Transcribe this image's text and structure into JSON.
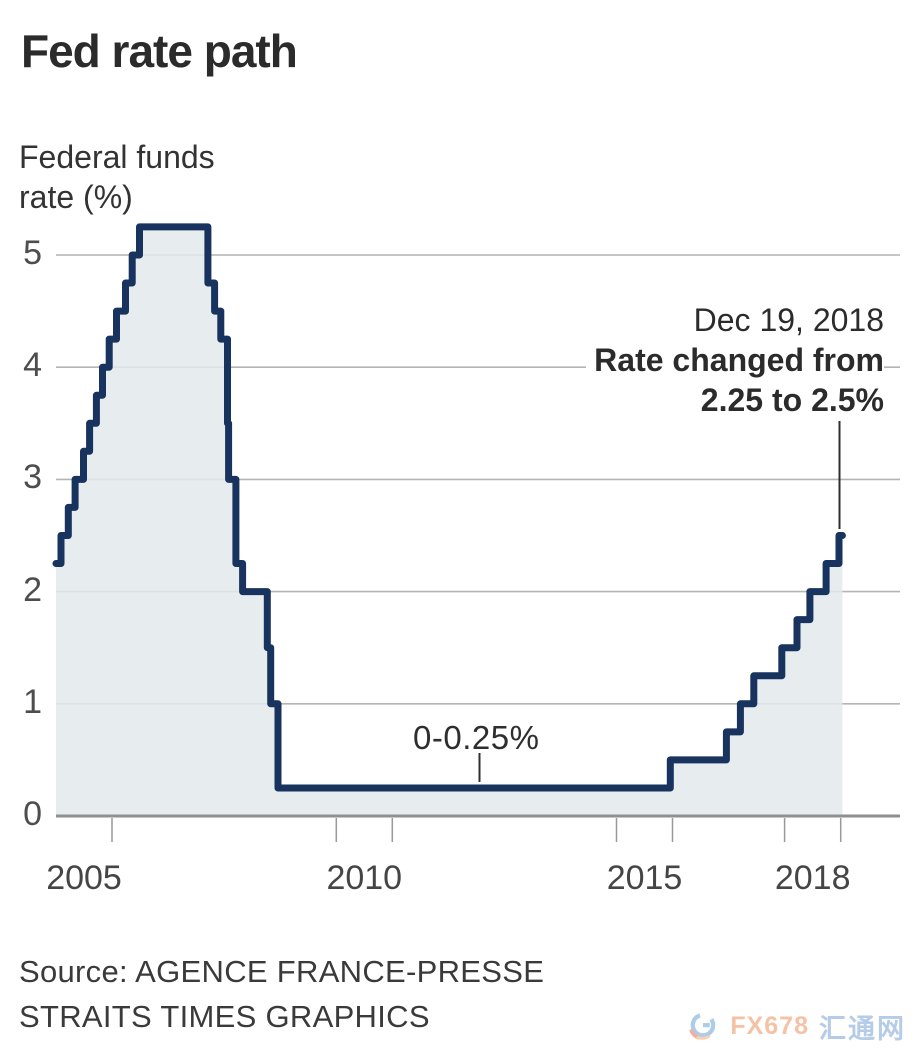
{
  "title": "Fed rate path",
  "subtitle_lines": [
    "Federal funds",
    "rate (%)"
  ],
  "annotations": {
    "rate_change": {
      "date_line": "Dec 19, 2018",
      "text_line1": "Rate changed from",
      "text_line2": "2.25 to 2.5%"
    },
    "zero_band": {
      "label": "0-0.25%"
    }
  },
  "source_lines": [
    "Source: AGENCE FRANCE-PRESSE",
    "STRAITS TIMES GRAPHICS"
  ],
  "watermark": {
    "brand_en": "FX678",
    "brand_cn": "汇通网"
  },
  "chart_data": {
    "type": "area",
    "step": true,
    "title": "Fed rate path",
    "ylabel": "Federal funds rate (%)",
    "xlabel": "",
    "ylim": [
      0,
      5.6
    ],
    "xlim": [
      2005,
      2020.05
    ],
    "grid": "horizontal",
    "legend": "none",
    "yticks": [
      0,
      1,
      2,
      3,
      4,
      5
    ],
    "x_axis": {
      "tick_years": [
        2006,
        2010,
        2011,
        2015,
        2016,
        2018,
        2019
      ],
      "labels": [
        {
          "text": "2005",
          "center_year": 2005.5
        },
        {
          "text": "2010",
          "center_year": 2010.5
        },
        {
          "text": "2015",
          "center_year": 2015.5
        },
        {
          "text": "2018",
          "center_year": 2018.5
        }
      ]
    },
    "colors": {
      "line": "#17335e",
      "fill": "#e3e9ec",
      "grid": "#b4b4b4",
      "axis": "#8f8f8f",
      "pointer": "#2f2f2f"
    },
    "series": [
      {
        "name": "Federal funds rate (%)",
        "step_points_year_rate": [
          [
            2005.0,
            2.25
          ],
          [
            2005.09,
            2.5
          ],
          [
            2005.22,
            2.75
          ],
          [
            2005.34,
            3.0
          ],
          [
            2005.49,
            3.25
          ],
          [
            2005.6,
            3.5
          ],
          [
            2005.72,
            3.75
          ],
          [
            2005.83,
            4.0
          ],
          [
            2005.95,
            4.25
          ],
          [
            2006.08,
            4.5
          ],
          [
            2006.24,
            4.75
          ],
          [
            2006.36,
            5.0
          ],
          [
            2006.49,
            5.25
          ],
          [
            2007.71,
            4.75
          ],
          [
            2007.83,
            4.5
          ],
          [
            2007.94,
            4.25
          ],
          [
            2008.06,
            3.5
          ],
          [
            2008.08,
            3.0
          ],
          [
            2008.21,
            2.25
          ],
          [
            2008.33,
            2.0
          ],
          [
            2008.77,
            1.5
          ],
          [
            2008.83,
            1.0
          ],
          [
            2008.96,
            0.25
          ],
          [
            2015.96,
            0.5
          ],
          [
            2016.96,
            0.75
          ],
          [
            2017.21,
            1.0
          ],
          [
            2017.45,
            1.25
          ],
          [
            2017.95,
            1.5
          ],
          [
            2018.22,
            1.75
          ],
          [
            2018.45,
            2.0
          ],
          [
            2018.74,
            2.25
          ],
          [
            2018.97,
            2.5
          ]
        ],
        "end_year": 2019.03
      }
    ]
  }
}
